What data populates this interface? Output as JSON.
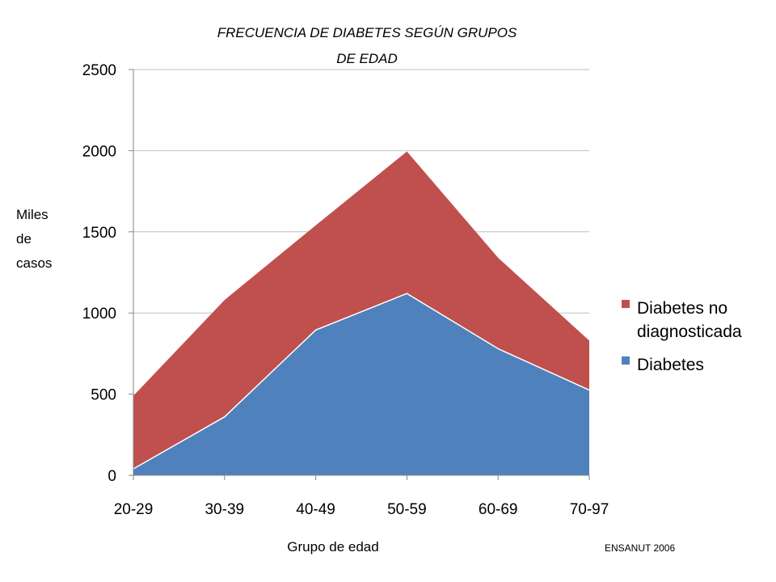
{
  "chart_data": {
    "type": "area",
    "stacked": true,
    "title_lines": [
      "FRECUENCIA DE DIABETES SEGÚN GRUPOS",
      "DE EDAD"
    ],
    "ylabel_lines": [
      "Miles",
      "de",
      "casos"
    ],
    "xlabel": "Grupo de edad",
    "categories": [
      "20-29",
      "30-39",
      "40-49",
      "50-59",
      "60-69",
      "70-97"
    ],
    "ylim": [
      0,
      2500
    ],
    "yticks": [
      0,
      500,
      1000,
      1500,
      2000,
      2500
    ],
    "grid": true,
    "legend_position": "right",
    "series": [
      {
        "name": "Diabetes",
        "color": "#4F81BD",
        "values": [
          40,
          360,
          895,
          1120,
          780,
          525
        ]
      },
      {
        "name": "Diabetes no diagnosticada",
        "color": "#C0504D",
        "values": [
          450,
          720,
          645,
          875,
          560,
          305
        ]
      }
    ],
    "legend": [
      {
        "lines": [
          "Diabetes no",
          "diagnosticada"
        ],
        "color": "#C0504D"
      },
      {
        "lines": [
          "Diabetes"
        ],
        "color": "#4F81BD"
      }
    ],
    "source_note": "ENSANUT 2006"
  }
}
